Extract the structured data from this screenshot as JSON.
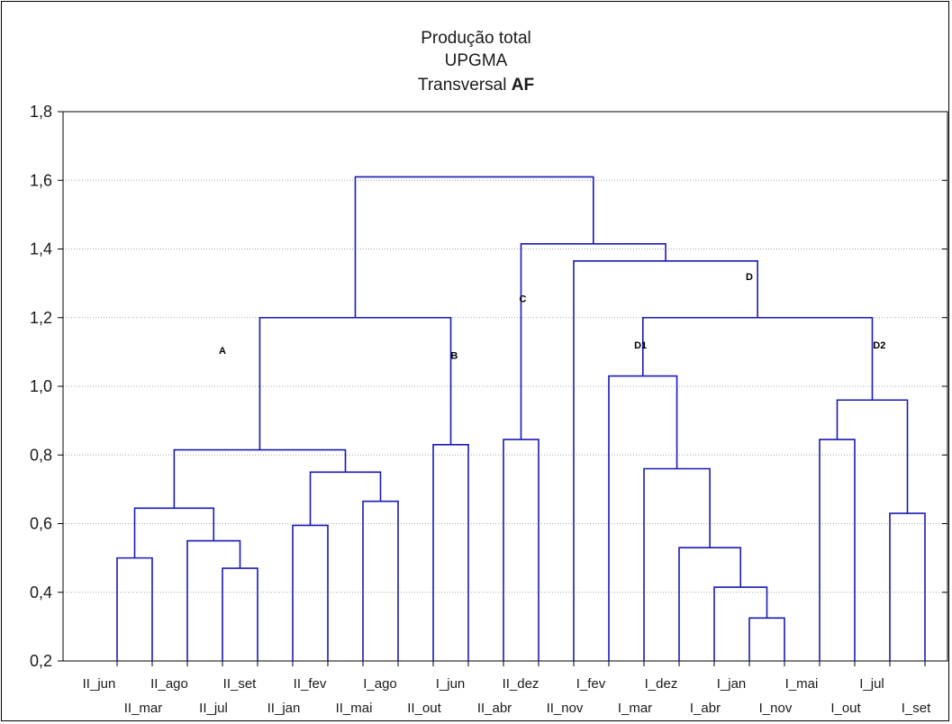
{
  "chart_data": {
    "type": "dendrogram",
    "title": "Produção total",
    "subtitle": "UPGMA",
    "subtitle2_prefix": "Transversal ",
    "subtitle2_bold": "AF",
    "ylim": [
      0.2,
      1.8
    ],
    "yticks": [
      "0,2",
      "0,4",
      "0,6",
      "0,8",
      "1,0",
      "1,2",
      "1,4",
      "1,6",
      "1,8"
    ],
    "grid": true,
    "leaves": [
      "II_jun",
      "II_mar",
      "II_ago",
      "II_jul",
      "II_set",
      "II_jan",
      "II_fev",
      "II_mai",
      "I_ago",
      "II_out",
      "I_jun",
      "II_abr",
      "II_dez",
      "II_nov",
      "I_fev",
      "I_mar",
      "I_dez",
      "I_abr",
      "I_jan",
      "I_nov",
      "I_mai",
      "I_out",
      "I_jul",
      "I_set"
    ],
    "merges": [
      {
        "left": "II_jun",
        "right": "II_mar",
        "height": 0.5
      },
      {
        "left": "II_jul",
        "right": "II_set",
        "height": 0.47
      },
      {
        "left": "II_ago",
        "right": "m2",
        "height": 0.55
      },
      {
        "left": "m1",
        "right": "m3",
        "height": 0.645
      },
      {
        "left": "II_jan",
        "right": "II_fev",
        "height": 0.595
      },
      {
        "left": "II_mai",
        "right": "I_ago",
        "height": 0.665
      },
      {
        "left": "m5",
        "right": "m6",
        "height": 0.75
      },
      {
        "left": "m4",
        "right": "m7",
        "height": 0.815
      },
      {
        "left": "II_out",
        "right": "I_jun",
        "height": 0.83
      },
      {
        "left": "m8",
        "right": "m9",
        "height": 1.2
      },
      {
        "left": "II_abr",
        "right": "II_dez",
        "height": 0.845
      },
      {
        "left": "I_jan",
        "right": "I_nov",
        "height": 0.325
      },
      {
        "left": "I_abr",
        "right": "m12",
        "height": 0.415
      },
      {
        "left": "I_dez",
        "right": "m13",
        "height": 0.53
      },
      {
        "left": "I_mar",
        "right": "m14",
        "height": 0.76
      },
      {
        "left": "I_fev",
        "right": "m15",
        "height": 1.03
      },
      {
        "left": "I_mai",
        "right": "I_out",
        "height": 0.845
      },
      {
        "left": "I_jul",
        "right": "I_set",
        "height": 0.63
      },
      {
        "left": "m17",
        "right": "m18",
        "height": 0.96
      },
      {
        "left": "m16",
        "right": "m19",
        "height": 1.2
      },
      {
        "left": "II_nov",
        "right": "m20",
        "height": 1.365
      },
      {
        "left": "m11",
        "right": "m21",
        "height": 1.415
      },
      {
        "left": "m10",
        "right": "m22",
        "height": 1.61
      }
    ],
    "cluster_labels": [
      {
        "text": "A",
        "leaf_pos": 3.0,
        "y": 1.095
      },
      {
        "text": "B",
        "leaf_pos": 9.6,
        "y": 1.08
      },
      {
        "text": "C",
        "leaf_pos": 11.55,
        "y": 1.245
      },
      {
        "text": "D",
        "leaf_pos": 18.0,
        "y": 1.31
      },
      {
        "text": "D1",
        "leaf_pos": 14.9,
        "y": 1.11
      },
      {
        "text": "D2",
        "leaf_pos": 21.7,
        "y": 1.11
      }
    ],
    "colors": {
      "lines": "#1a1ab4",
      "grid": "#a8a8a8",
      "axis": "#000000"
    }
  }
}
